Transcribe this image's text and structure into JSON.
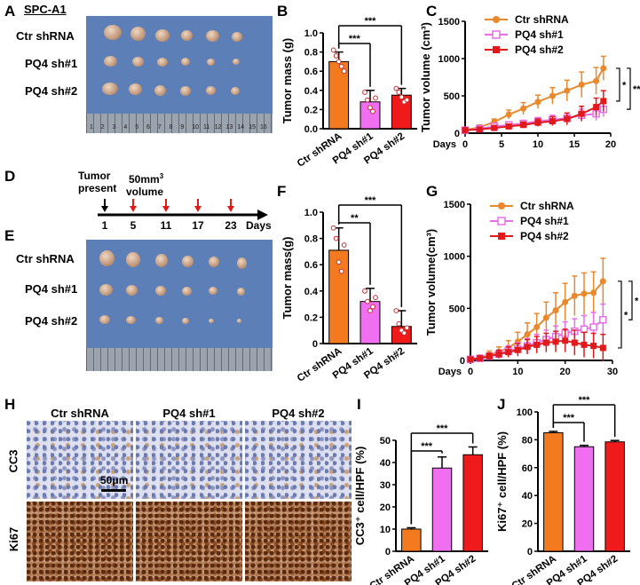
{
  "panel_letters": [
    "A",
    "B",
    "C",
    "D",
    "E",
    "F",
    "G",
    "H",
    "I",
    "J"
  ],
  "cell_line": "SPC-A1",
  "groups": [
    "Ctr shRNA",
    "PQ4 sh#1",
    "PQ4 sh#2"
  ],
  "colors": {
    "ctr": "#f47a1f",
    "sh1": "#f06ef0",
    "sh2": "#f01a1a",
    "ctr_line": "#e8892d",
    "sh1_line": "#e86ee8",
    "sh2_line": "#e01a1a"
  },
  "ruler_numbers": [
    "1",
    "2",
    "3",
    "4",
    "5",
    "6",
    "7",
    "8",
    "9",
    "10",
    "11",
    "12",
    "13",
    "14",
    "15",
    "16"
  ],
  "timeline": {
    "label_tumor": "Tumor",
    "label_present": "present",
    "label_50": "50mm",
    "label_3": "3",
    "label_volume": "volume",
    "days": [
      "1",
      "5",
      "11",
      "17",
      "23"
    ],
    "days_label": "Days"
  },
  "ihc": {
    "columns": [
      "Ctr shRNA",
      "PQ4 sh#1",
      "PQ4 sh#2"
    ],
    "rows": [
      "CC3",
      "Ki67"
    ],
    "scale_bar": "50μm"
  },
  "chart_data": [
    {
      "id": "B",
      "type": "bar",
      "categories": [
        "Ctr shRNA",
        "PQ4 sh#1",
        "PQ4 sh#2"
      ],
      "values": [
        0.7,
        0.28,
        0.35
      ],
      "errors": [
        0.1,
        0.12,
        0.07
      ],
      "points": [
        [
          0.82,
          0.76,
          0.7,
          0.65,
          0.6
        ],
        [
          0.38,
          0.3,
          0.22,
          0.18,
          0.32
        ],
        [
          0.42,
          0.38,
          0.33,
          0.28,
          0.3
        ]
      ],
      "ylabel": "Tumor mass (g)",
      "ylim": [
        0,
        1.0
      ],
      "yticks": [
        "0.0",
        "0.2",
        "0.4",
        "0.6",
        "0.8",
        "1.0"
      ],
      "ytick_values": [
        0,
        0.2,
        0.4,
        0.6,
        0.8,
        1.0
      ],
      "significance": [
        {
          "from": 0,
          "to": 1,
          "label": "***"
        },
        {
          "from": 0,
          "to": 2,
          "label": "***"
        }
      ]
    },
    {
      "id": "C",
      "type": "line",
      "x": [
        0,
        2,
        4,
        6,
        8,
        10,
        12,
        14,
        16,
        18,
        19
      ],
      "series": [
        {
          "name": "Ctr shRNA",
          "values": [
            40,
            80,
            150,
            250,
            330,
            420,
            500,
            570,
            650,
            700,
            870
          ],
          "errors": [
            10,
            30,
            40,
            60,
            80,
            90,
            110,
            140,
            170,
            180,
            160
          ]
        },
        {
          "name": "PQ4 sh#1",
          "values": [
            40,
            60,
            90,
            110,
            130,
            160,
            180,
            200,
            240,
            260,
            320
          ],
          "errors": [
            10,
            20,
            30,
            40,
            40,
            50,
            60,
            70,
            80,
            90,
            100
          ]
        },
        {
          "name": "PQ4 sh#2",
          "values": [
            40,
            50,
            70,
            90,
            110,
            140,
            160,
            190,
            260,
            350,
            430
          ],
          "errors": [
            10,
            20,
            30,
            30,
            40,
            50,
            60,
            80,
            100,
            120,
            140
          ]
        }
      ],
      "ylabel": "Tumor volume (cm³)",
      "xlabel": "Days",
      "xlim": [
        0,
        20
      ],
      "ylim": [
        0,
        1500
      ],
      "xticks": [
        "0",
        "5",
        "10",
        "15",
        "20"
      ],
      "xtick_values": [
        0,
        5,
        10,
        15,
        20
      ],
      "yticks": [
        "0",
        "500",
        "1000",
        "1500"
      ],
      "ytick_values": [
        0,
        500,
        1000,
        1500
      ],
      "significance": [
        "*",
        "**"
      ]
    },
    {
      "id": "F",
      "type": "bar",
      "categories": [
        "Ctr shRNA",
        "PQ4 sh#1",
        "PQ4 sh#2"
      ],
      "values": [
        0.71,
        0.32,
        0.13
      ],
      "errors": [
        0.17,
        0.1,
        0.12
      ],
      "points": [
        [
          0.88,
          0.8,
          0.62,
          0.55,
          0.75
        ],
        [
          0.4,
          0.32,
          0.25,
          0.28,
          0.35
        ],
        [
          0.25,
          0.15,
          0.1,
          0.08,
          0.12
        ]
      ],
      "ylabel": "Tumor mass(g)",
      "ylim": [
        0,
        1.0
      ],
      "yticks": [
        "0",
        "0.2",
        "0.4",
        "0.6",
        "0.8",
        "1.0"
      ],
      "ytick_values": [
        0,
        0.2,
        0.4,
        0.6,
        0.8,
        1.0
      ],
      "significance": [
        {
          "from": 0,
          "to": 1,
          "label": "**"
        },
        {
          "from": 0,
          "to": 2,
          "label": "***"
        }
      ]
    },
    {
      "id": "G",
      "type": "line",
      "x": [
        0,
        2,
        4,
        6,
        8,
        10,
        12,
        14,
        16,
        18,
        20,
        22,
        24,
        26,
        28
      ],
      "series": [
        {
          "name": "Ctr shRNA",
          "values": [
            10,
            30,
            50,
            80,
            120,
            180,
            250,
            320,
            410,
            480,
            560,
            620,
            640,
            650,
            760
          ],
          "errors": [
            10,
            20,
            40,
            50,
            70,
            90,
            110,
            130,
            150,
            170,
            180,
            190,
            200,
            200,
            220
          ]
        },
        {
          "name": "PQ4 sh#1",
          "values": [
            10,
            20,
            40,
            60,
            90,
            110,
            140,
            170,
            200,
            230,
            260,
            280,
            300,
            320,
            390
          ],
          "errors": [
            10,
            20,
            30,
            40,
            50,
            60,
            70,
            80,
            90,
            100,
            110,
            120,
            130,
            140,
            150
          ]
        },
        {
          "name": "PQ4 sh#2",
          "values": [
            10,
            20,
            40,
            60,
            80,
            100,
            130,
            150,
            170,
            180,
            190,
            170,
            150,
            140,
            120
          ],
          "errors": [
            10,
            20,
            30,
            40,
            50,
            60,
            70,
            80,
            90,
            100,
            110,
            120,
            120,
            120,
            130
          ]
        }
      ],
      "ylabel": "Tumor volume(cm³)",
      "xlabel": "Days",
      "xlim": [
        0,
        30
      ],
      "ylim": [
        0,
        1500
      ],
      "xticks": [
        "0",
        "10",
        "20",
        "30"
      ],
      "xtick_values": [
        0,
        10,
        20,
        30
      ],
      "yticks": [
        "0",
        "500",
        "1000",
        "1500"
      ],
      "ytick_values": [
        0,
        500,
        1000,
        1500
      ],
      "significance": [
        "*",
        "*"
      ]
    },
    {
      "id": "I",
      "type": "bar",
      "categories": [
        "Ctr shRNA",
        "PQ4 sh#1",
        "PQ4 sh#2"
      ],
      "values": [
        10,
        37.5,
        43.5
      ],
      "errors": [
        0.6,
        5.0,
        3.5
      ],
      "ylabel": "CC3⁺ cell/HPF (%)",
      "ylim": [
        0,
        50
      ],
      "yticks": [
        "0",
        "10",
        "20",
        "30",
        "40",
        "50"
      ],
      "ytick_values": [
        0,
        10,
        20,
        30,
        40,
        50
      ],
      "significance": [
        {
          "from": 0,
          "to": 1,
          "label": "***"
        },
        {
          "from": 0,
          "to": 2,
          "label": "***"
        }
      ]
    },
    {
      "id": "J",
      "type": "bar",
      "categories": [
        "Ctr shRNA",
        "PQ4 sh#1",
        "PQ4 sh#2"
      ],
      "values": [
        85,
        75,
        78.5
      ],
      "errors": [
        1.0,
        1.0,
        1.0
      ],
      "ylabel": "Ki67⁺ cell/HPF (%)",
      "ylim": [
        0,
        100
      ],
      "yticks": [
        "0",
        "20",
        "40",
        "60",
        "80",
        "100"
      ],
      "ytick_values": [
        0,
        20,
        40,
        60,
        80,
        100
      ],
      "significance": [
        {
          "from": 0,
          "to": 1,
          "label": "***"
        },
        {
          "from": 0,
          "to": 2,
          "label": "***"
        }
      ]
    }
  ]
}
